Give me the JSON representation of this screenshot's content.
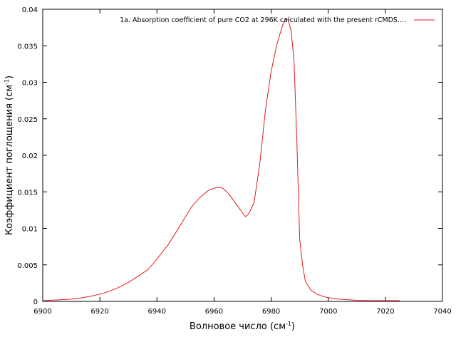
{
  "chart_data": {
    "type": "line",
    "title": "",
    "xlabel": "Волновое число (см",
    "xlabel_sup": "-1",
    "xlabel_close": ")",
    "ylabel": "Коэффициент поглощения (см",
    "ylabel_sup": "-1",
    "ylabel_close": ")",
    "xlim": [
      6900,
      7040
    ],
    "ylim": [
      0,
      0.04
    ],
    "x_ticks": [
      6900,
      6920,
      6940,
      6960,
      6980,
      7000,
      7020,
      7040
    ],
    "x_tick_labels": [
      "6900",
      "6920",
      "6940",
      "6960",
      "6980",
      "7000",
      "7020",
      "7040"
    ],
    "y_ticks": [
      0,
      0.005,
      0.01,
      0.015,
      0.02,
      0.025,
      0.03,
      0.035,
      0.04
    ],
    "y_tick_labels": [
      "0",
      "0.005",
      "0.01",
      "0.015",
      "0.02",
      "0.025",
      "0.03",
      "0.035",
      "0.04"
    ],
    "grid": false,
    "legend_position": "top-right",
    "series": [
      {
        "name": "1a. Absorption coefficient of pure CO2 at 296K calculated with the present rCMDS....",
        "color": "#e31a1c",
        "x": [
          6900,
          6902,
          6905,
          6910,
          6914,
          6918,
          6922,
          6926,
          6930,
          6934,
          6937,
          6940,
          6944,
          6948,
          6952,
          6955,
          6958,
          6960,
          6961,
          6962,
          6963,
          6965,
          6968,
          6970,
          6971,
          6972,
          6974,
          6976,
          6978,
          6980,
          6982,
          6984,
          6985,
          6986,
          6987,
          6988,
          6989,
          6990,
          6991,
          6992,
          6994,
          6996,
          6998,
          7000,
          7004,
          7010,
          7016,
          7020,
          7025
        ],
        "y": [
          0.0001,
          0.00015,
          0.0002,
          0.0003,
          0.0005,
          0.0008,
          0.0012,
          0.0018,
          0.0026,
          0.0036,
          0.0044,
          0.0058,
          0.0078,
          0.0103,
          0.0129,
          0.0142,
          0.0152,
          0.0155,
          0.0156,
          0.0156,
          0.0155,
          0.0148,
          0.0132,
          0.0121,
          0.0116,
          0.0119,
          0.0135,
          0.0188,
          0.0262,
          0.0315,
          0.0352,
          0.0378,
          0.0387,
          0.0386,
          0.037,
          0.033,
          0.022,
          0.0085,
          0.005,
          0.0027,
          0.0015,
          0.001,
          0.0007,
          0.0005,
          0.0003,
          0.00015,
          0.0001,
          0.0001,
          0.0001
        ]
      }
    ]
  }
}
